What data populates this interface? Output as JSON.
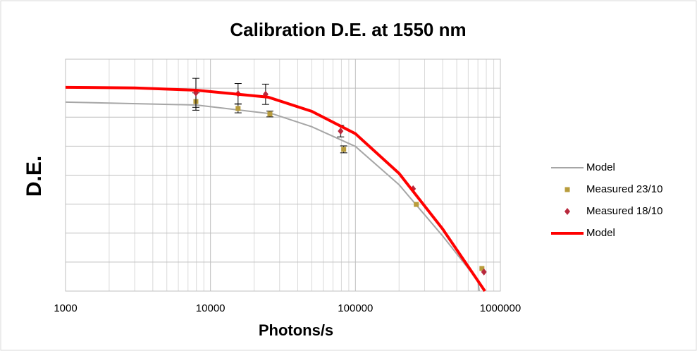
{
  "chart_data": {
    "type": "line",
    "title": "Calibration D.E. at 1550 nm",
    "x_label": "Photons/s",
    "y_label": "D.E.",
    "x_scale": "log",
    "xlim": [
      1000,
      1000000
    ],
    "xticks": [
      1000,
      10000,
      100000,
      1000000
    ],
    "ylim": [
      0,
      8
    ],
    "yticks": [
      0,
      1,
      2,
      3,
      4,
      5,
      6,
      7,
      8
    ],
    "grid": true,
    "legend": "right",
    "series": [
      {
        "name": "Model",
        "style": "line",
        "color": "#a6a6a6",
        "line_width": 2,
        "x": [
          1000,
          8000,
          27000,
          50000,
          100000,
          200000,
          400000,
          700000,
          714000
        ],
        "values": [
          6.52,
          6.42,
          6.11,
          5.67,
          4.99,
          3.67,
          1.9,
          0.36,
          0
        ]
      },
      {
        "name": "Measured 23/10",
        "style": "marker",
        "marker": "square",
        "color": "#b89c3c",
        "x": [
          7930,
          15500,
          25700,
          83000,
          263000,
          746000
        ],
        "values": [
          6.54,
          6.3,
          6.11,
          4.89,
          2.99,
          0.78
        ],
        "errors": [
          0.3,
          0.15,
          0.1,
          0.12,
          null,
          null
        ]
      },
      {
        "name": "Measured 18/10",
        "style": "marker",
        "marker": "diamond",
        "color": "#b8283c",
        "x": [
          7930,
          15500,
          24000,
          79000,
          250000,
          770000
        ],
        "values": [
          6.84,
          6.81,
          6.79,
          5.52,
          3.53,
          0.66
        ],
        "errors": [
          0.5,
          0.35,
          0.35,
          0.2,
          null,
          null
        ]
      },
      {
        "name": "Model",
        "style": "line",
        "color": "#ff0000",
        "line_width": 4,
        "x": [
          1000,
          3000,
          8000,
          25000,
          50000,
          100000,
          200000,
          400000,
          782000
        ],
        "values": [
          7.03,
          7.01,
          6.93,
          6.69,
          6.2,
          5.43,
          4.06,
          2.14,
          0
        ]
      }
    ]
  }
}
